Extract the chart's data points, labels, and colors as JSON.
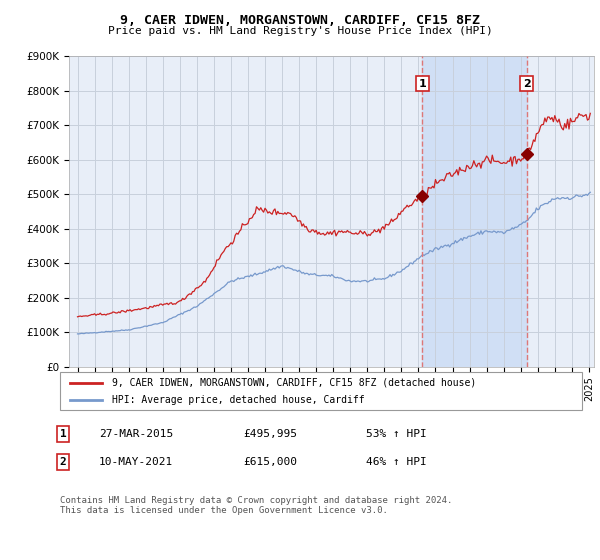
{
  "title": "9, CAER IDWEN, MORGANSTOWN, CARDIFF, CF15 8FZ",
  "subtitle": "Price paid vs. HM Land Registry's House Price Index (HPI)",
  "legend_label_red": "9, CAER IDWEN, MORGANSTOWN, CARDIFF, CF15 8FZ (detached house)",
  "legend_label_blue": "HPI: Average price, detached house, Cardiff",
  "annotation1_label": "1",
  "annotation1_date": "27-MAR-2015",
  "annotation1_price": "£495,995",
  "annotation1_hpi": "53% ↑ HPI",
  "annotation1_year": 2015.23,
  "annotation1_value": 495995,
  "annotation2_label": "2",
  "annotation2_date": "10-MAY-2021",
  "annotation2_price": "£615,000",
  "annotation2_hpi": "46% ↑ HPI",
  "annotation2_year": 2021.36,
  "annotation2_value": 615000,
  "footer": "Contains HM Land Registry data © Crown copyright and database right 2024.\nThis data is licensed under the Open Government Licence v3.0.",
  "ylim": [
    0,
    900000
  ],
  "background_color": "#ffffff",
  "plot_bg_color": "#e8eef8",
  "grid_color": "#c8d0dc",
  "red_line_color": "#cc2222",
  "blue_line_color": "#7799cc",
  "highlight_color": "#d0dff5",
  "dashed_line_color": "#dd7777",
  "yticks": [
    0,
    100000,
    200000,
    300000,
    400000,
    500000,
    600000,
    700000,
    800000,
    900000
  ],
  "ytick_labels": [
    "£0",
    "£100K",
    "£200K",
    "£300K",
    "£400K",
    "£500K",
    "£600K",
    "£700K",
    "£800K",
    "£900K"
  ],
  "year_start": 1995,
  "year_end": 2025,
  "hpi_anchors": {
    "1995.0": 95000,
    "1998.0": 107000,
    "2000.0": 128000,
    "2002.0": 175000,
    "2004.0": 248000,
    "2005.5": 268000,
    "2007.0": 292000,
    "2008.5": 268000,
    "2010.0": 262000,
    "2011.0": 248000,
    "2012.0": 248000,
    "2013.0": 255000,
    "2014.0": 278000,
    "2015.25": 323000,
    "2016.0": 340000,
    "2017.0": 358000,
    "2018.0": 378000,
    "2019.0": 393000,
    "2020.0": 388000,
    "2021.0": 410000,
    "2021.36": 422000,
    "2022.0": 458000,
    "2023.0": 488000,
    "2024.0": 490000,
    "2025.0": 500000
  },
  "prop_anchors": {
    "1995.0": 145000,
    "1997.0": 155000,
    "1999.0": 170000,
    "2001.0": 188000,
    "2002.5": 248000,
    "2003.5": 330000,
    "2004.5": 390000,
    "2005.5": 455000,
    "2006.5": 448000,
    "2007.5": 445000,
    "2008.5": 400000,
    "2009.5": 385000,
    "2010.5": 392000,
    "2011.5": 385000,
    "2012.5": 390000,
    "2013.5": 420000,
    "2014.0": 450000,
    "2015.23": 495995,
    "2016.0": 528000,
    "2017.0": 558000,
    "2018.0": 582000,
    "2019.0": 598000,
    "2020.0": 592000,
    "2021.0": 605000,
    "2021.36": 615000,
    "2022.0": 678000,
    "2022.5": 718000,
    "2023.0": 720000,
    "2023.5": 698000,
    "2024.0": 708000,
    "2024.5": 728000,
    "2025.0": 728000
  }
}
